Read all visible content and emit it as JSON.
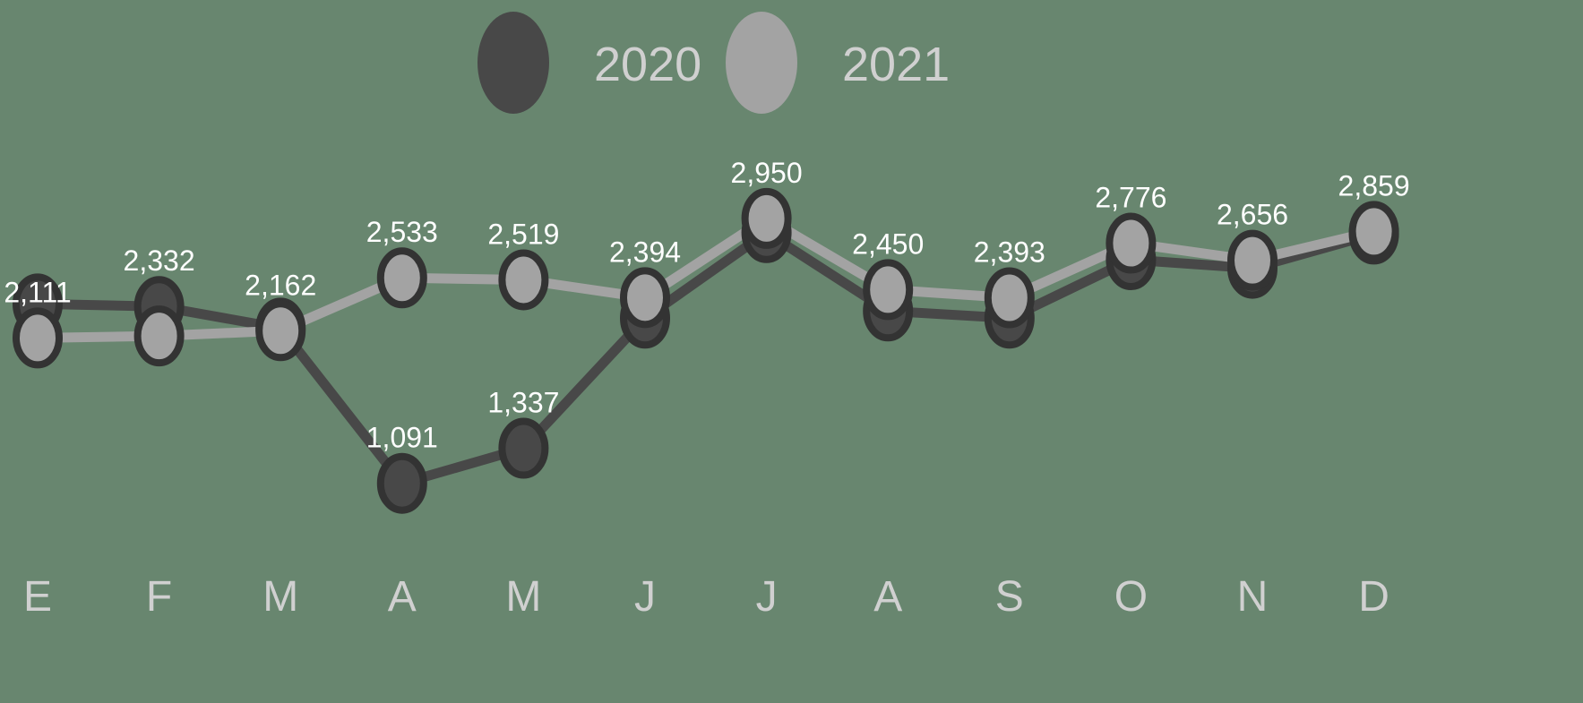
{
  "chart_data": {
    "type": "line",
    "categories": [
      "E",
      "F",
      "M",
      "A",
      "M",
      "J",
      "J",
      "A",
      "S",
      "O",
      "N",
      "D"
    ],
    "series": [
      {
        "name": "2020",
        "color": "#484848",
        "values": [
          2350,
          2332,
          2180,
          1091,
          1337,
          2250,
          2850,
          2300,
          2250,
          2660,
          2600,
          2840
        ],
        "value_labels": [
          null,
          "2,332",
          null,
          "1,091",
          "1,337",
          null,
          null,
          null,
          null,
          null,
          null,
          null
        ]
      },
      {
        "name": "2021",
        "color": "#a3a3a3",
        "values": [
          2111,
          2125,
          2162,
          2533,
          2519,
          2394,
          2950,
          2450,
          2393,
          2776,
          2656,
          2859
        ],
        "value_labels": [
          "2,111",
          null,
          "2,162",
          "2,533",
          "2,519",
          "2,394",
          "2,950",
          "2,450",
          "2,393",
          "2,776",
          "2,656",
          "2,859"
        ]
      }
    ],
    "ylim": [
      800,
      3100
    ],
    "legend": "top"
  }
}
